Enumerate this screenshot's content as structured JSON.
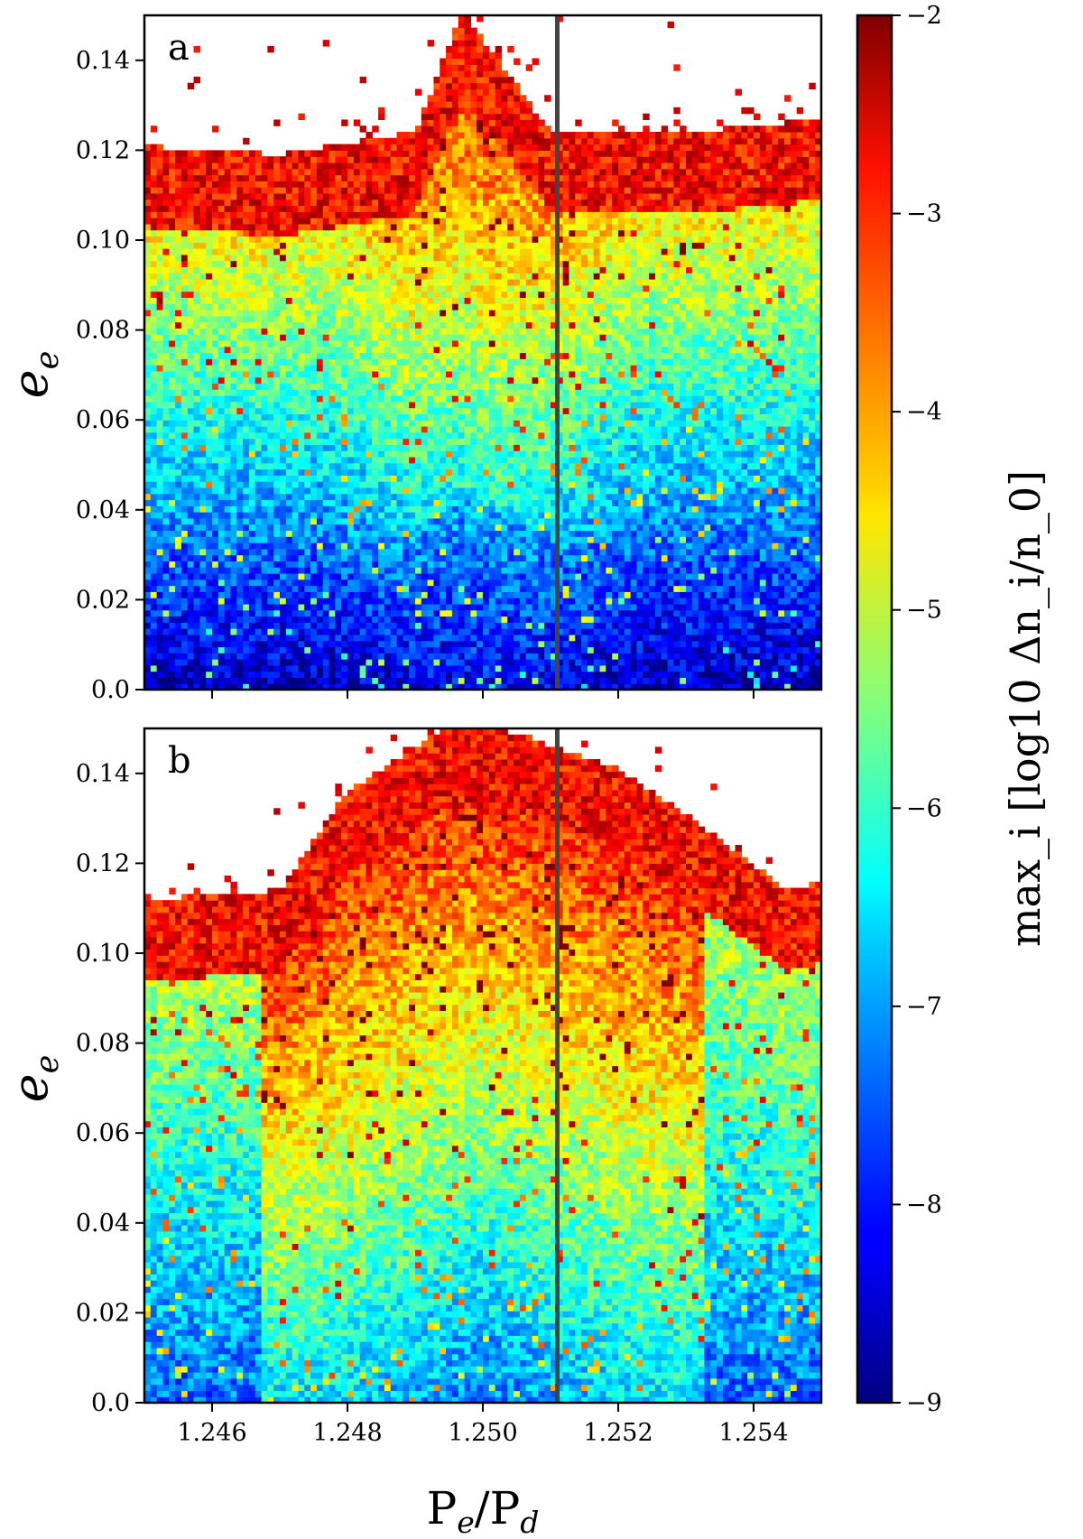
{
  "chart_data": {
    "type": "heatmap",
    "xlabel": "P_e/P_d",
    "ylabel": "e_e",
    "colorbar_label": "max_i [log10 Δn_i/n_0]",
    "xlim": [
      1.245,
      1.255
    ],
    "ylim": [
      0.0,
      0.15
    ],
    "x_ticks": [
      "1.246",
      "1.248",
      "1.250",
      "1.252",
      "1.254"
    ],
    "y_ticks": [
      "0.0",
      "0.02",
      "0.04",
      "0.06",
      "0.08",
      "0.10",
      "0.12",
      "0.14"
    ],
    "colorbar": {
      "min": -9,
      "max": -2,
      "ticks": [
        "−2",
        "−3",
        "−4",
        "−5",
        "−6",
        "−7",
        "−8",
        "−9"
      ],
      "colormap": "jet"
    },
    "vertical_line_x": 1.2511,
    "panels": [
      {
        "label": "a",
        "stability_boundary": [
          {
            "x": 1.245,
            "e": 0.115
          },
          {
            "x": 1.247,
            "e": 0.113
          },
          {
            "x": 1.249,
            "e": 0.118
          },
          {
            "x": 1.2497,
            "e": 0.145
          },
          {
            "x": 1.251,
            "e": 0.118
          },
          {
            "x": 1.253,
            "e": 0.118
          },
          {
            "x": 1.255,
            "e": 0.121
          }
        ]
      },
      {
        "label": "b",
        "stability_boundary": [
          {
            "x": 1.245,
            "e": 0.106
          },
          {
            "x": 1.247,
            "e": 0.108
          },
          {
            "x": 1.248,
            "e": 0.13
          },
          {
            "x": 1.2495,
            "e": 0.145
          },
          {
            "x": 1.2505,
            "e": 0.143
          },
          {
            "x": 1.252,
            "e": 0.135
          },
          {
            "x": 1.253,
            "e": 0.125
          },
          {
            "x": 1.2545,
            "e": 0.108
          },
          {
            "x": 1.255,
            "e": 0.11
          }
        ]
      }
    ]
  }
}
